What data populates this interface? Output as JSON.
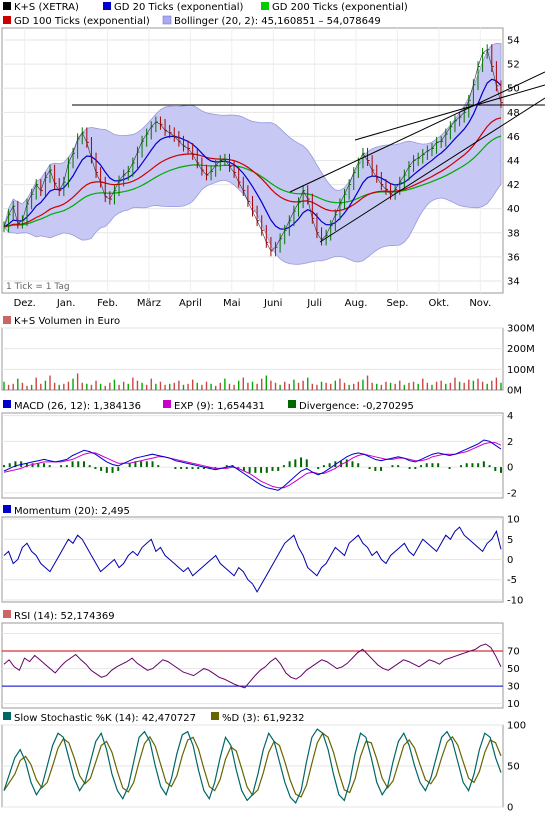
{
  "chart_data": {
    "type": "line",
    "panels": {
      "price": {
        "legend": [
          {
            "label": "K+S (XETRA)",
            "color": "#000000"
          },
          {
            "label": "GD 20 Ticks (exponential)",
            "color": "#0000cc"
          },
          {
            "label": "GD 200 Ticks (exponential)",
            "color": "#00aa00"
          },
          {
            "label": "GD 100 Ticks (exponential)",
            "color": "#cc0000"
          },
          {
            "label": "Bollinger (20, 2): 45,160851 – 54,078649",
            "color": "#9999ee"
          }
        ],
        "y_ticks": [
          "54",
          "52",
          "50",
          "48",
          "46",
          "44",
          "42",
          "40",
          "38",
          "36",
          "34"
        ],
        "ylim": [
          33,
          55
        ],
        "x_labels": [
          "Dez.",
          "Jan.",
          "Feb.",
          "März",
          "April",
          "Mai",
          "Juni",
          "Juli",
          "Aug.",
          "Sep.",
          "Okt.",
          "Nov."
        ],
        "note": "1 Tick = 1 Tag",
        "close": [
          38.5,
          39.5,
          40.2,
          38.8,
          39.0,
          40.4,
          41.2,
          42.0,
          41.5,
          42.6,
          43.2,
          42.1,
          41.5,
          42.2,
          43.8,
          44.6,
          45.8,
          46.3,
          45.5,
          44.2,
          43.0,
          42.2,
          41.0,
          40.8,
          41.5,
          42.3,
          42.8,
          43.1,
          43.8,
          44.7,
          45.6,
          46.2,
          46.8,
          47.2,
          47.0,
          46.5,
          46.3,
          46.0,
          45.6,
          45.2,
          45.0,
          44.5,
          43.8,
          43.2,
          42.8,
          43.1,
          43.6,
          44.0,
          44.1,
          43.5,
          43.0,
          42.2,
          41.5,
          40.6,
          39.8,
          39.0,
          38.2,
          37.2,
          36.5,
          36.8,
          37.5,
          38.2,
          39.0,
          39.8,
          40.5,
          41.5,
          40.8,
          39.2,
          38.0,
          37.4,
          37.8,
          38.6,
          39.5,
          40.4,
          41.2,
          42.0,
          43.0,
          43.8,
          44.6,
          44.0,
          43.2,
          42.6,
          42.0,
          41.6,
          41.2,
          41.6,
          42.2,
          42.8,
          43.5,
          44.0,
          44.2,
          44.5,
          44.8,
          45.0,
          45.5,
          45.6,
          46.2,
          46.8,
          47.3,
          47.6,
          48.0,
          49.0,
          50.3,
          51.8,
          52.9,
          53.2,
          51.8,
          50.2,
          48.8
        ]
      },
      "volume": {
        "title": "K+S Volumen in Euro",
        "y_ticks": [
          "300M",
          "200M",
          "100M",
          "0M"
        ],
        "ylim": [
          0,
          300
        ],
        "values": [
          40,
          25,
          30,
          55,
          35,
          20,
          25,
          60,
          30,
          45,
          70,
          35,
          25,
          30,
          40,
          55,
          80,
          35,
          30,
          25,
          45,
          30,
          20,
          35,
          50,
          25,
          40,
          30,
          60,
          45,
          35,
          25,
          55,
          30,
          40,
          25,
          30,
          35,
          45,
          25,
          30,
          50,
          35,
          25,
          40,
          30,
          20,
          35,
          55,
          30,
          25,
          45,
          60,
          35,
          40,
          30,
          55,
          70,
          45,
          35,
          25,
          40,
          30,
          50,
          35,
          45,
          60,
          30,
          25,
          40,
          35,
          30,
          45,
          55,
          35,
          25,
          30,
          40,
          50,
          70,
          35,
          30,
          25,
          40,
          35,
          30,
          45,
          25,
          35,
          40,
          30,
          55,
          35,
          25,
          40,
          45,
          30,
          35,
          60,
          40,
          35,
          50,
          45,
          55,
          40,
          30,
          45,
          60,
          35
        ]
      },
      "macd": {
        "legend": [
          {
            "label": "MACD (26, 12): 1,384136",
            "color": "#0000cc"
          },
          {
            "label": "EXP (9): 1,654431",
            "color": "#cc00cc"
          },
          {
            "label": "Divergence: -0,270295",
            "color": "#006600"
          }
        ],
        "y_ticks": [
          "4",
          "2",
          "0",
          "-2"
        ],
        "ylim": [
          -2.4,
          4.2
        ],
        "macd": [
          -0.3,
          -0.1,
          0.1,
          0.2,
          0.3,
          0.4,
          0.5,
          0.6,
          0.5,
          0.4,
          0.5,
          0.6,
          0.9,
          1.1,
          1.3,
          1.2,
          1.0,
          0.7,
          0.4,
          0.2,
          0.1,
          0.3,
          0.5,
          0.7,
          0.8,
          0.9,
          1.0,
          0.9,
          0.8,
          0.7,
          0.5,
          0.4,
          0.3,
          0.2,
          0.1,
          0.0,
          -0.1,
          -0.2,
          -0.1,
          0.0,
          0.1,
          -0.2,
          -0.5,
          -0.8,
          -1.1,
          -1.4,
          -1.6,
          -1.7,
          -1.8,
          -1.5,
          -1.1,
          -0.7,
          -0.3,
          -0.1,
          -0.4,
          -0.6,
          -0.4,
          -0.1,
          0.2,
          0.5,
          0.8,
          1.0,
          1.1,
          1.0,
          0.8,
          0.6,
          0.5,
          0.6,
          0.7,
          0.8,
          0.7,
          0.5,
          0.4,
          0.6,
          0.8,
          1.0,
          1.1,
          1.0,
          0.9,
          1.0,
          1.2,
          1.4,
          1.6,
          1.8,
          2.1,
          2.0,
          1.7,
          1.4
        ],
        "signal": [
          -0.4,
          -0.3,
          -0.2,
          -0.1,
          0.1,
          0.2,
          0.3,
          0.4,
          0.4,
          0.4,
          0.4,
          0.5,
          0.6,
          0.8,
          1.0,
          1.1,
          1.1,
          0.9,
          0.7,
          0.5,
          0.3,
          0.3,
          0.3,
          0.4,
          0.5,
          0.6,
          0.7,
          0.8,
          0.8,
          0.7,
          0.6,
          0.5,
          0.4,
          0.3,
          0.2,
          0.1,
          0.0,
          -0.1,
          -0.1,
          -0.1,
          0.0,
          -0.1,
          -0.3,
          -0.5,
          -0.8,
          -1.1,
          -1.3,
          -1.5,
          -1.6,
          -1.6,
          -1.4,
          -1.1,
          -0.8,
          -0.5,
          -0.4,
          -0.5,
          -0.5,
          -0.3,
          -0.1,
          0.2,
          0.4,
          0.7,
          0.9,
          1.0,
          0.9,
          0.8,
          0.7,
          0.6,
          0.6,
          0.7,
          0.7,
          0.6,
          0.5,
          0.5,
          0.6,
          0.8,
          0.9,
          1.0,
          1.0,
          1.0,
          1.1,
          1.2,
          1.4,
          1.6,
          1.8,
          1.9,
          1.9,
          1.7
        ]
      },
      "momentum": {
        "title": "Momentum (20): 2,495",
        "y_ticks": [
          "10",
          "5",
          "0",
          "-5",
          "-10"
        ],
        "ylim": [
          -10.5,
          10.5
        ],
        "values": [
          1,
          2,
          -1,
          0,
          3,
          4,
          2,
          1,
          -1,
          -2,
          -3,
          -1,
          1,
          3,
          5,
          4,
          6,
          5,
          3,
          1,
          -1,
          -3,
          -2,
          -1,
          0,
          -2,
          -1,
          1,
          2,
          1,
          3,
          4,
          5,
          2,
          3,
          1,
          0,
          -1,
          -2,
          -3,
          -2,
          -4,
          -3,
          -2,
          -1,
          0,
          1,
          -1,
          -2,
          -3,
          -4,
          -2,
          -3,
          -5,
          -6,
          -8,
          -6,
          -4,
          -2,
          0,
          2,
          4,
          5,
          6,
          3,
          1,
          -2,
          -3,
          -4,
          -2,
          -1,
          1,
          3,
          2,
          1,
          4,
          5,
          6,
          4,
          3,
          1,
          2,
          0,
          -1,
          1,
          2,
          3,
          4,
          2,
          1,
          3,
          5,
          4,
          3,
          2,
          4,
          6,
          5,
          7,
          8,
          6,
          5,
          4,
          3,
          2,
          4,
          5,
          7,
          2.5
        ]
      },
      "rsi": {
        "title": "RSI (14): 52,174369",
        "y_ticks": [
          "70",
          "50",
          "30",
          "10"
        ],
        "ylim": [
          5,
          102
        ],
        "reference_lines": [
          70,
          30
        ],
        "values": [
          55,
          60,
          52,
          48,
          62,
          58,
          65,
          60,
          55,
          50,
          45,
          52,
          58,
          62,
          66,
          60,
          55,
          48,
          44,
          40,
          42,
          48,
          52,
          55,
          58,
          62,
          56,
          52,
          48,
          50,
          55,
          60,
          58,
          54,
          50,
          46,
          44,
          42,
          46,
          50,
          48,
          44,
          40,
          38,
          35,
          32,
          30,
          28,
          35,
          42,
          48,
          52,
          58,
          62,
          55,
          45,
          40,
          38,
          42,
          48,
          52,
          56,
          60,
          58,
          54,
          50,
          52,
          56,
          62,
          68,
          72,
          66,
          60,
          54,
          50,
          48,
          52,
          56,
          60,
          58,
          55,
          52,
          56,
          60,
          58,
          55,
          60,
          62,
          64,
          66,
          68,
          70,
          72,
          76,
          78,
          74,
          64,
          52
        ]
      },
      "stochastic": {
        "legend": [
          {
            "label": "Slow Stochastic %K (14): 42,470727",
            "color": "#006666"
          },
          {
            "label": "%D (3): 61,9232",
            "color": "#666600"
          }
        ],
        "y_ticks": [
          "100",
          "50",
          "0"
        ],
        "ylim": [
          0,
          100
        ],
        "k": [
          20,
          40,
          60,
          70,
          55,
          30,
          15,
          25,
          50,
          75,
          90,
          85,
          60,
          35,
          20,
          30,
          55,
          80,
          90,
          70,
          40,
          20,
          10,
          25,
          55,
          85,
          92,
          80,
          50,
          25,
          15,
          35,
          65,
          88,
          92,
          75,
          45,
          20,
          10,
          30,
          60,
          85,
          75,
          45,
          20,
          8,
          15,
          40,
          70,
          90,
          80,
          55,
          30,
          12,
          5,
          20,
          55,
          85,
          95,
          90,
          70,
          40,
          15,
          8,
          30,
          65,
          90,
          85,
          60,
          30,
          15,
          25,
          55,
          80,
          90,
          75,
          50,
          30,
          20,
          35,
          60,
          85,
          92,
          80,
          55,
          30,
          20,
          40,
          70,
          90,
          85,
          60,
          42
        ]
      }
    }
  }
}
